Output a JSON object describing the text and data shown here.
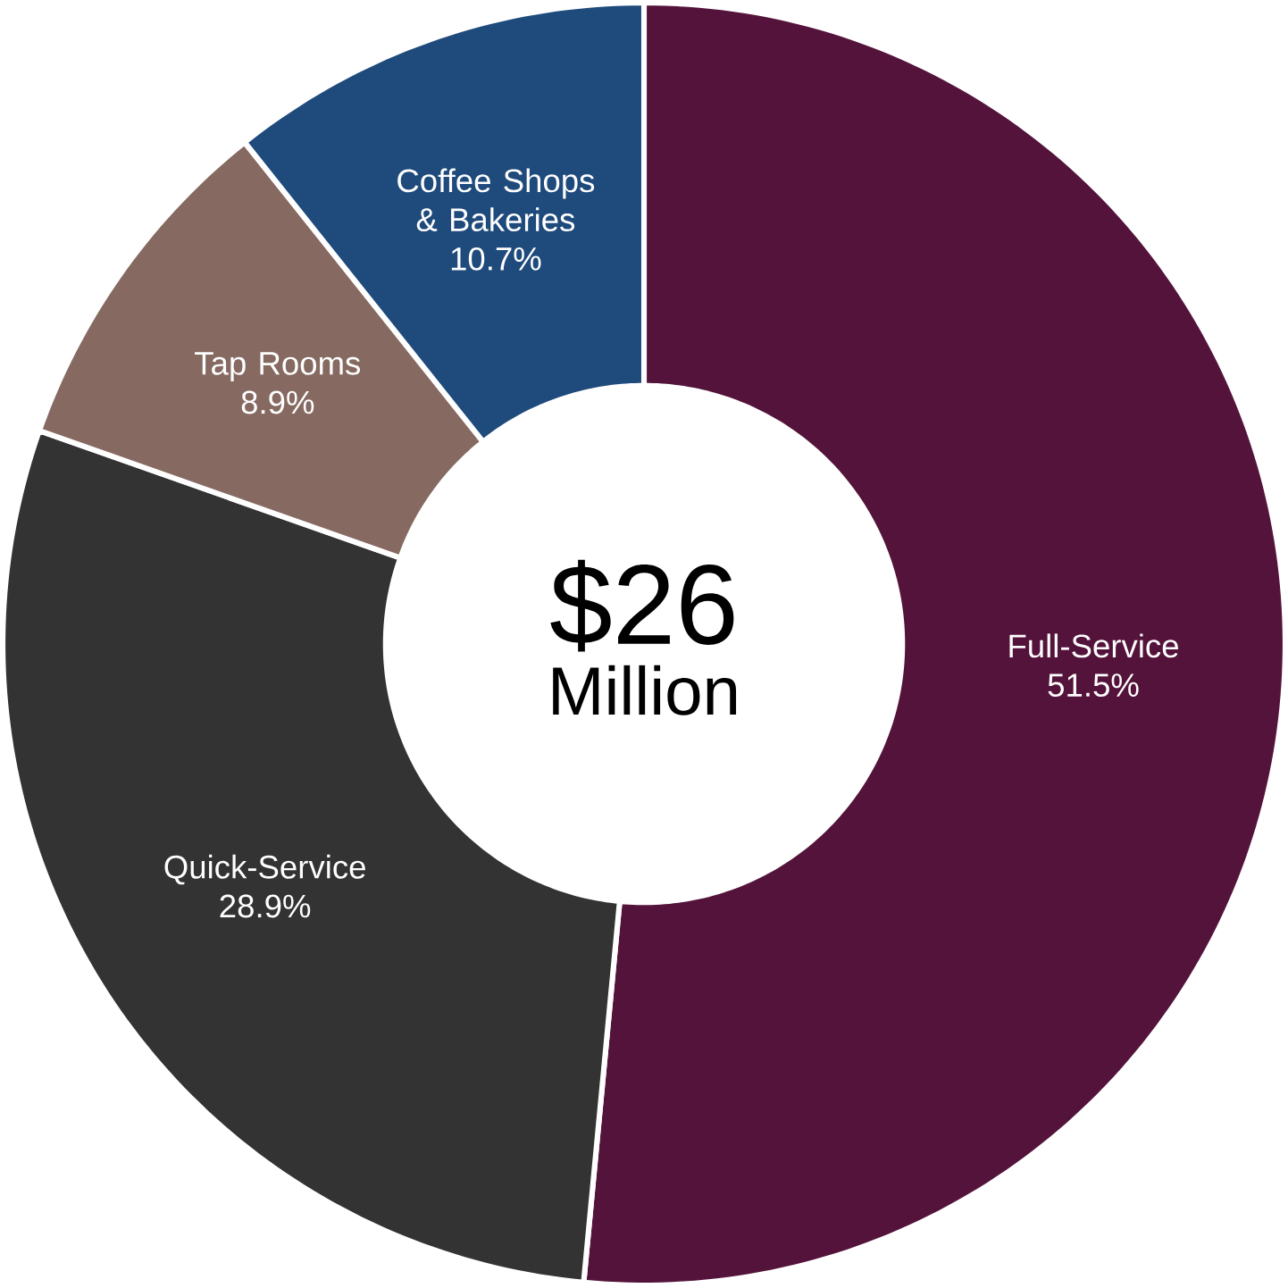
{
  "chart_data": {
    "type": "donut",
    "title": "$26",
    "subtitle": "Million",
    "categories": [
      "Full-Service",
      "Quick-Service",
      "Tap Rooms",
      "Coffee Shops & Bakeries"
    ],
    "values": [
      51.5,
      28.9,
      8.9,
      10.7
    ],
    "value_labels": [
      "51.5%",
      "28.9%",
      "8.9%",
      "10.7%"
    ],
    "colors": [
      "#54133a",
      "#333333",
      "#866a62",
      "#1f4a7c"
    ]
  }
}
